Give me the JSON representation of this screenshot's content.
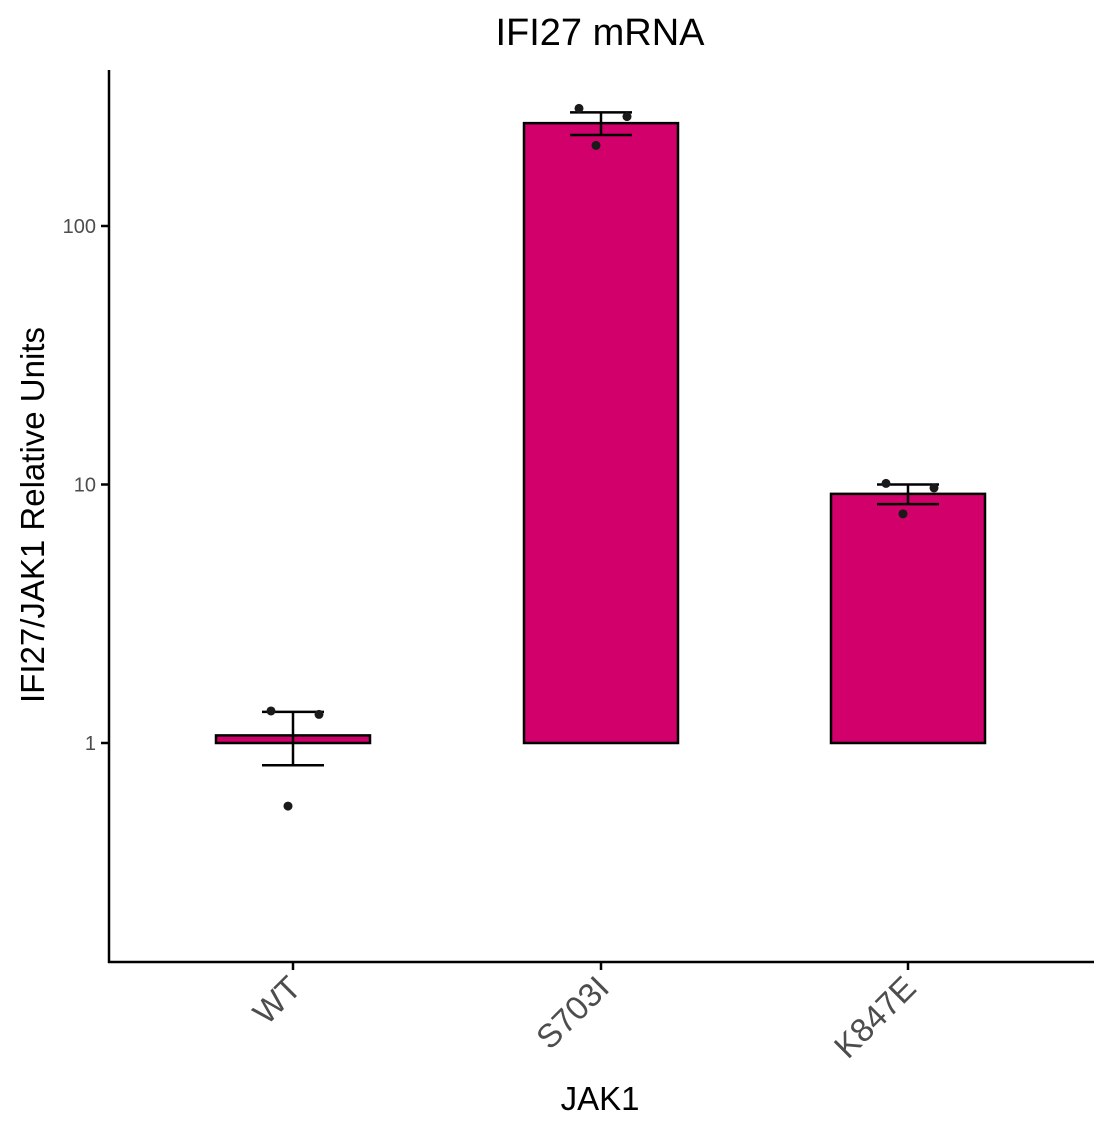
{
  "chart_data": {
    "type": "bar",
    "title": "IFI27 mRNA",
    "xlabel": "JAK1",
    "ylabel": "IFI27/JAK1 Relative Units",
    "y_scale": "log10",
    "ylim": [
      0.15,
      380
    ],
    "y_ticks": [
      1,
      10,
      100
    ],
    "y_tick_labels": [
      "1",
      "10",
      "100"
    ],
    "grid": false,
    "categories": [
      "WT",
      "S703I",
      "K847E"
    ],
    "values": [
      1.07,
      250,
      9.2
    ],
    "error_low": [
      0.82,
      225,
      8.4
    ],
    "error_high": [
      1.32,
      275,
      10.0
    ],
    "points": [
      [
        1.33,
        1.29,
        0.57
      ],
      [
        285,
        265,
        205
      ],
      [
        10.1,
        9.7,
        7.7
      ]
    ],
    "colors": {
      "bar_fill": "#d1006b",
      "bar_stroke": "#000000",
      "point": "#1a1a1a"
    }
  }
}
